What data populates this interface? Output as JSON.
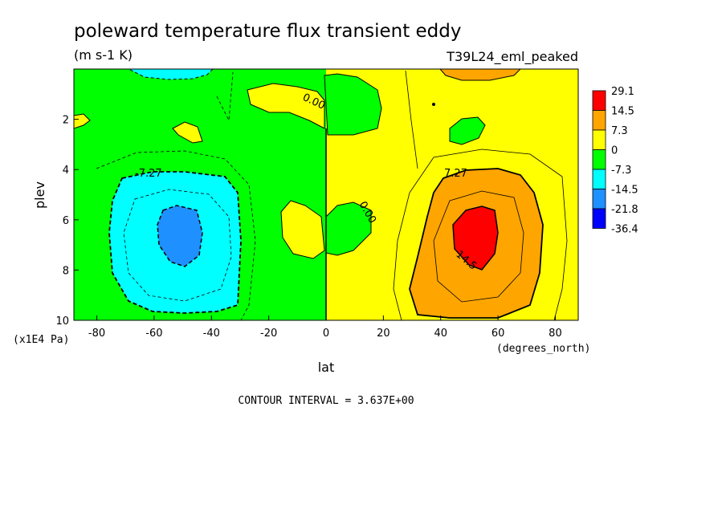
{
  "chart_data": {
    "type": "contour",
    "title": "poleward temperature flux transient eddy",
    "units": "(m s-1 K)",
    "run_label": "T39L24_eml_peaked",
    "xlabel": "lat",
    "ylabel": "plev",
    "x_units": "(degrees_north)",
    "y_units": "(x1E4 Pa)",
    "x_ticks": [
      -80,
      -60,
      -40,
      -20,
      0,
      20,
      40,
      60,
      80
    ],
    "y_ticks": [
      2,
      4,
      6,
      8,
      10
    ],
    "xlim": [
      -88,
      88
    ],
    "ylim": [
      0,
      10
    ],
    "y_inverted": true,
    "contour_interval_text": "CONTOUR INTERVAL = 3.637E+00",
    "contour_labels": [
      "-7.27",
      "0.00",
      "0.00",
      "7.27",
      "14.5"
    ],
    "colorbar": [
      {
        "label": "29.1",
        "color": "#ff0000"
      },
      {
        "label": "14.5",
        "color": "#ffa500"
      },
      {
        "label": "7.3",
        "color": "#ffff00"
      },
      {
        "label": "0",
        "color": "#00ff00"
      },
      {
        "label": "-7.3",
        "color": "#00ffff"
      },
      {
        "label": "-14.5",
        "color": "#1e90ff"
      },
      {
        "label": "-21.8",
        "color": "#0000ff"
      },
      {
        "label": "-36.4",
        "color": ""
      }
    ],
    "features": [
      {
        "name": "southern-minimum",
        "lat": -52,
        "plev": 6.7,
        "value_range": "< -14.5"
      },
      {
        "name": "northern-maximum",
        "lat": 52,
        "plev": 6.7,
        "value_range": "> 14.5"
      }
    ]
  }
}
